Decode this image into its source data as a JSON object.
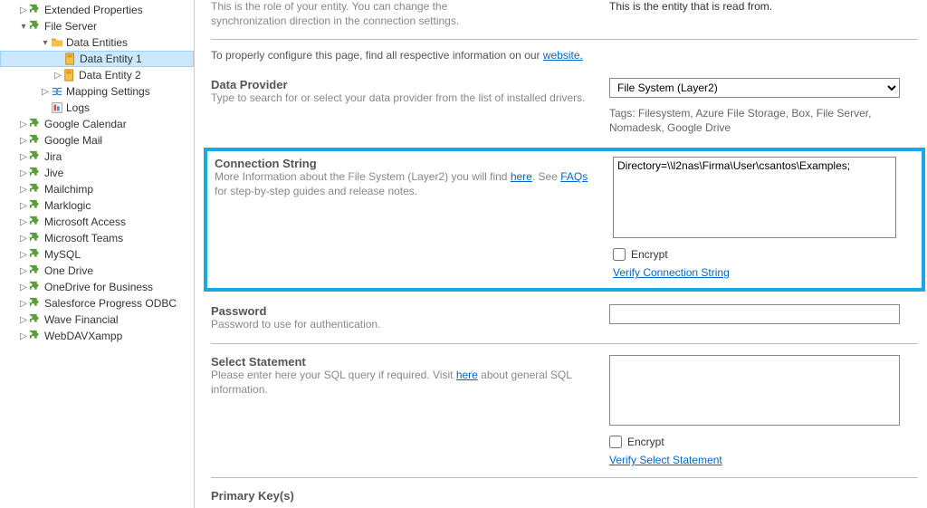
{
  "tree": {
    "ext_props": "Extended Properties",
    "file_server": "File Server",
    "data_entities": "Data Entities",
    "de1": "Data Entity 1",
    "de2": "Data Entity 2",
    "mapping": "Mapping Settings",
    "logs": "Logs",
    "items": [
      "Google Calendar",
      "Google Mail",
      "Jira",
      "Jive",
      "Mailchimp",
      "Marklogic",
      "Microsoft Access",
      "Microsoft Teams",
      "MySQL",
      "One Drive",
      "OneDrive for Business",
      "Salesforce Progress ODBC",
      "Wave Financial",
      "WebDAVXampp"
    ]
  },
  "intro": {
    "desc_line1": "This is the role of your entity. You can change the",
    "desc_line2": "synchronization direction in the connection settings.",
    "note": "This is the entity that is read from.",
    "config_pre": "To properly configure this page, find all respective information on our ",
    "config_link": "website."
  },
  "provider": {
    "title": "Data Provider",
    "desc": "Type to search for or select your data provider from the list of installed drivers.",
    "value": "File System (Layer2)",
    "tags": "Tags: Filesystem, Azure File Storage, Box, File Server, Nomadesk, Google Drive"
  },
  "conn": {
    "title": "Connection String",
    "desc_pre": "More Information about the File System (Layer2) you will find ",
    "here": "here",
    "desc_mid": ". See ",
    "faqs": "FAQs",
    "desc_post": " for step-by-step guides and release notes.",
    "value": "Directory=\\\\l2nas\\Firma\\User\\csantos\\Examples;",
    "encrypt": "Encrypt",
    "verify": "Verify Connection String"
  },
  "pwd": {
    "title": "Password",
    "desc": "Password to use for authentication."
  },
  "select": {
    "title": "Select Statement",
    "desc_pre": "Please enter here your SQL query if required. Visit ",
    "here": "here",
    "desc_post": " about general SQL information.",
    "encrypt": "Encrypt",
    "verify": "Verify Select Statement"
  },
  "pk": {
    "title": "Primary Key(s)"
  }
}
